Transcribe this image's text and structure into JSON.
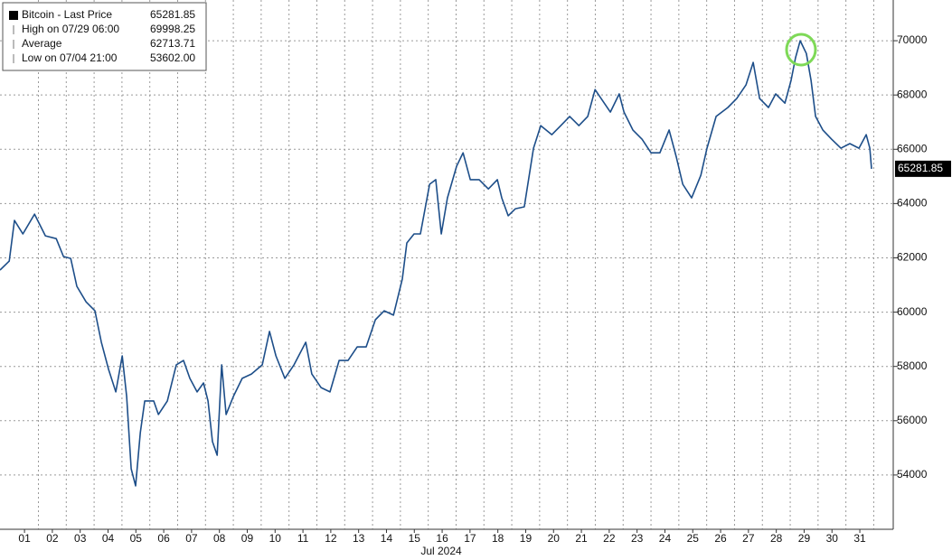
{
  "chart_data": {
    "type": "line",
    "x_label": "Jul 2024",
    "xlim": [
      0.12,
      32.2
    ],
    "xticks": [
      {
        "value": 1,
        "label": "01"
      },
      {
        "value": 2,
        "label": "02"
      },
      {
        "value": 3,
        "label": "03"
      },
      {
        "value": 4,
        "label": "04"
      },
      {
        "value": 5,
        "label": "05"
      },
      {
        "value": 6,
        "label": "06"
      },
      {
        "value": 7,
        "label": "07"
      },
      {
        "value": 8,
        "label": "08"
      },
      {
        "value": 9,
        "label": "09"
      },
      10,
      11,
      12,
      13,
      14,
      15,
      16,
      17,
      18,
      19,
      20,
      21,
      22,
      23,
      24,
      25,
      26,
      27,
      28,
      29,
      30,
      31
    ],
    "ylim": [
      52000,
      71500
    ],
    "yticks": [
      54000,
      56000,
      58000,
      60000,
      62000,
      64000,
      66000,
      68000,
      70000
    ],
    "grid": true,
    "legend_position": "upper left",
    "series": [
      {
        "name": "Bitcoin - Last Price",
        "color": "#1d4e89",
        "x": [
          0.12,
          0.45,
          0.64,
          0.94,
          1.36,
          1.75,
          2.14,
          2.4,
          2.66,
          2.88,
          3.21,
          3.53,
          3.76,
          4.02,
          4.28,
          4.51,
          4.67,
          4.83,
          4.99,
          5.16,
          5.32,
          5.64,
          5.81,
          6.13,
          6.45,
          6.71,
          6.94,
          7.2,
          7.43,
          7.59,
          7.75,
          7.92,
          8.08,
          8.24,
          8.5,
          8.82,
          9.15,
          9.54,
          9.8,
          10.03,
          10.35,
          10.68,
          11.1,
          11.32,
          11.65,
          11.97,
          12.3,
          12.62,
          12.95,
          13.27,
          13.6,
          13.92,
          14.25,
          14.57,
          14.73,
          14.99,
          15.22,
          15.55,
          15.77,
          15.97,
          16.19,
          16.52,
          16.75,
          17.01,
          17.33,
          17.66,
          17.98,
          18.14,
          18.37,
          18.63,
          18.95,
          19.28,
          19.54,
          19.94,
          20.26,
          20.58,
          20.91,
          21.23,
          21.49,
          21.71,
          22.04,
          22.36,
          22.53,
          22.85,
          23.18,
          23.5,
          23.82,
          24.15,
          24.41,
          24.64,
          24.96,
          25.29,
          25.51,
          25.84,
          26.26,
          26.58,
          26.91,
          27.17,
          27.4,
          27.72,
          27.98,
          28.31,
          28.53,
          28.69,
          28.86,
          29.08,
          29.25,
          29.41,
          29.67,
          29.99,
          30.32,
          30.64,
          30.97,
          31.23,
          31.36,
          31.42
        ],
        "values": [
          61550,
          61880,
          63380,
          62880,
          63610,
          62810,
          62710,
          62050,
          61980,
          60950,
          60380,
          60050,
          58890,
          57890,
          57060,
          58390,
          56890,
          54230,
          53602,
          55560,
          56730,
          56730,
          56230,
          56730,
          58060,
          58220,
          57560,
          57060,
          57390,
          56730,
          55230,
          54730,
          58060,
          56230,
          56890,
          57560,
          57720,
          58060,
          59290,
          58390,
          57560,
          58060,
          58890,
          57720,
          57220,
          57060,
          58220,
          58220,
          58720,
          58720,
          59720,
          60050,
          59890,
          61220,
          62550,
          62880,
          62880,
          64710,
          64880,
          62880,
          64210,
          65380,
          65870,
          64880,
          64880,
          64540,
          64880,
          64210,
          63550,
          63810,
          63880,
          66040,
          66870,
          66540,
          66870,
          67210,
          66870,
          67210,
          68200,
          67870,
          67370,
          68040,
          67370,
          66710,
          66370,
          65870,
          65870,
          66710,
          65710,
          64710,
          64210,
          65040,
          66040,
          67210,
          67540,
          67870,
          68370,
          69200,
          67870,
          67540,
          68040,
          67700,
          68540,
          69370,
          69998.25,
          69530,
          68540,
          67210,
          66710,
          66370,
          66040,
          66210,
          66040,
          66540,
          66040,
          65281.85
        ]
      }
    ],
    "stats": [
      {
        "label": "High on 07/29 06:00",
        "value": 69998.25
      },
      {
        "label": "Average",
        "value": 62713.71
      },
      {
        "label": "Low on 07/04 21:00",
        "value": 53602,
        "value_label": "53602.00"
      }
    ]
  }
}
